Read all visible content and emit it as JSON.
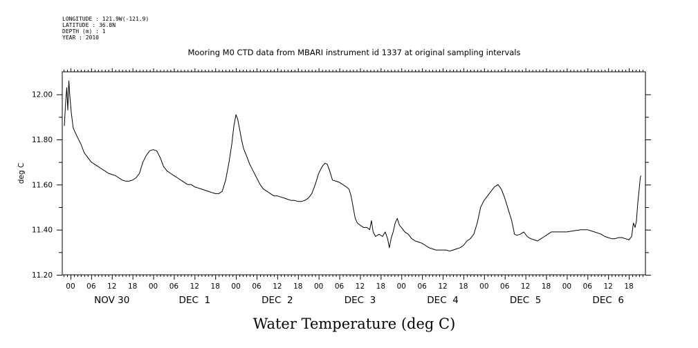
{
  "header": {
    "longitude": "LONGITUDE : 121.9W(-121.9)",
    "latitude": "LATITUDE : 36.8N",
    "depth": "DEPTH (m) : 1",
    "year": "YEAR : 2010"
  },
  "chart_data": {
    "type": "line",
    "title": "Mooring M0 CTD data from MBARI instrument id 1337 at original sampling intervals",
    "xlabel": "Water Temperature (deg C)",
    "ylabel": "deg C",
    "xunit": "hours since 2010-11-30 00:00",
    "xlim": [
      -2.4,
      166.8
    ],
    "ylim": [
      11.2,
      12.1
    ],
    "yticks": [
      11.2,
      11.4,
      11.6,
      11.8,
      12.0
    ],
    "ytick_labels": [
      "11.20",
      "11.40",
      "11.60",
      "11.80",
      "12.00"
    ],
    "xtick_labels": [
      "00",
      "06",
      "12",
      "18",
      "00",
      "06",
      "12",
      "18",
      "00",
      "06",
      "12",
      "18",
      "00",
      "06",
      "12",
      "18",
      "00",
      "06",
      "12",
      "18",
      "00",
      "06",
      "12",
      "18",
      "00",
      "06",
      "12",
      "18"
    ],
    "date_labels": [
      "NOV 30",
      "DEC  1",
      "DEC  2",
      "DEC  3",
      "DEC  4",
      "DEC  5",
      "DEC  6"
    ],
    "grid": false,
    "series": [
      {
        "values": [
          [
            -1.8,
            11.86
          ],
          [
            -1.4,
            11.97
          ],
          [
            -1.1,
            12.03
          ],
          [
            -0.8,
            11.93
          ],
          [
            -0.5,
            12.06
          ],
          [
            -0.2,
            11.99
          ],
          [
            0.2,
            11.92
          ],
          [
            0.8,
            11.85
          ],
          [
            1.4,
            11.83
          ],
          [
            2,
            11.81
          ],
          [
            3,
            11.78
          ],
          [
            4,
            11.74
          ],
          [
            5,
            11.72
          ],
          [
            6,
            11.7
          ],
          [
            7,
            11.69
          ],
          [
            8,
            11.68
          ],
          [
            9,
            11.67
          ],
          [
            10,
            11.66
          ],
          [
            11,
            11.65
          ],
          [
            12,
            11.645
          ],
          [
            13,
            11.64
          ],
          [
            14,
            11.63
          ],
          [
            15,
            11.62
          ],
          [
            16,
            11.615
          ],
          [
            17,
            11.615
          ],
          [
            18,
            11.62
          ],
          [
            19,
            11.63
          ],
          [
            20,
            11.65
          ],
          [
            21,
            11.7
          ],
          [
            22,
            11.73
          ],
          [
            23,
            11.75
          ],
          [
            24,
            11.755
          ],
          [
            25,
            11.75
          ],
          [
            26,
            11.72
          ],
          [
            27,
            11.68
          ],
          [
            28,
            11.66
          ],
          [
            29,
            11.65
          ],
          [
            30,
            11.64
          ],
          [
            31,
            11.63
          ],
          [
            32,
            11.62
          ],
          [
            33,
            11.61
          ],
          [
            34,
            11.6
          ],
          [
            35,
            11.6
          ],
          [
            36,
            11.59
          ],
          [
            37,
            11.585
          ],
          [
            38,
            11.58
          ],
          [
            39,
            11.575
          ],
          [
            40,
            11.57
          ],
          [
            41,
            11.565
          ],
          [
            42,
            11.56
          ],
          [
            43,
            11.56
          ],
          [
            44,
            11.57
          ],
          [
            45,
            11.62
          ],
          [
            46,
            11.7
          ],
          [
            46.8,
            11.78
          ],
          [
            47.4,
            11.86
          ],
          [
            48,
            11.91
          ],
          [
            48.5,
            11.89
          ],
          [
            49,
            11.85
          ],
          [
            49.6,
            11.8
          ],
          [
            50.2,
            11.76
          ],
          [
            51,
            11.73
          ],
          [
            52,
            11.69
          ],
          [
            53,
            11.66
          ],
          [
            54,
            11.63
          ],
          [
            55,
            11.6
          ],
          [
            56,
            11.58
          ],
          [
            57,
            11.57
          ],
          [
            58,
            11.56
          ],
          [
            59,
            11.55
          ],
          [
            60,
            11.55
          ],
          [
            61,
            11.545
          ],
          [
            62,
            11.54
          ],
          [
            63,
            11.535
          ],
          [
            64,
            11.53
          ],
          [
            65,
            11.53
          ],
          [
            66,
            11.525
          ],
          [
            67,
            11.525
          ],
          [
            68,
            11.53
          ],
          [
            69,
            11.54
          ],
          [
            70,
            11.56
          ],
          [
            71,
            11.6
          ],
          [
            72,
            11.65
          ],
          [
            73,
            11.68
          ],
          [
            73.8,
            11.695
          ],
          [
            74.5,
            11.69
          ],
          [
            75.2,
            11.66
          ],
          [
            76,
            11.62
          ],
          [
            77,
            11.615
          ],
          [
            78,
            11.61
          ],
          [
            79,
            11.6
          ],
          [
            80,
            11.59
          ],
          [
            80.8,
            11.58
          ],
          [
            81.4,
            11.55
          ],
          [
            82,
            11.5
          ],
          [
            82.6,
            11.45
          ],
          [
            83.2,
            11.43
          ],
          [
            84,
            11.42
          ],
          [
            85,
            11.41
          ],
          [
            86,
            11.41
          ],
          [
            86.8,
            11.4
          ],
          [
            87.3,
            11.44
          ],
          [
            87.8,
            11.39
          ],
          [
            88.5,
            11.37
          ],
          [
            89.5,
            11.38
          ],
          [
            90.5,
            11.37
          ],
          [
            91.3,
            11.39
          ],
          [
            92,
            11.36
          ],
          [
            92.5,
            11.32
          ],
          [
            93,
            11.36
          ],
          [
            93.6,
            11.39
          ],
          [
            94.2,
            11.43
          ],
          [
            94.8,
            11.45
          ],
          [
            95.4,
            11.42
          ],
          [
            96,
            11.41
          ],
          [
            97,
            11.39
          ],
          [
            98,
            11.38
          ],
          [
            99,
            11.36
          ],
          [
            100,
            11.35
          ],
          [
            101,
            11.345
          ],
          [
            102,
            11.34
          ],
          [
            103,
            11.33
          ],
          [
            104,
            11.32
          ],
          [
            105,
            11.315
          ],
          [
            106,
            11.31
          ],
          [
            107,
            11.31
          ],
          [
            108,
            11.31
          ],
          [
            109,
            11.31
          ],
          [
            110,
            11.305
          ],
          [
            111,
            11.31
          ],
          [
            112,
            11.315
          ],
          [
            113,
            11.32
          ],
          [
            114,
            11.33
          ],
          [
            115,
            11.35
          ],
          [
            116,
            11.36
          ],
          [
            117,
            11.38
          ],
          [
            118,
            11.43
          ],
          [
            119,
            11.5
          ],
          [
            120,
            11.53
          ],
          [
            121,
            11.55
          ],
          [
            122,
            11.57
          ],
          [
            123,
            11.59
          ],
          [
            124,
            11.6
          ],
          [
            125,
            11.58
          ],
          [
            126,
            11.54
          ],
          [
            127,
            11.49
          ],
          [
            128,
            11.44
          ],
          [
            128.8,
            11.38
          ],
          [
            129.5,
            11.375
          ],
          [
            130.5,
            11.38
          ],
          [
            131.5,
            11.39
          ],
          [
            132.5,
            11.37
          ],
          [
            133.5,
            11.36
          ],
          [
            134.5,
            11.355
          ],
          [
            135.5,
            11.35
          ],
          [
            136.5,
            11.36
          ],
          [
            137.5,
            11.37
          ],
          [
            138.5,
            11.38
          ],
          [
            139.5,
            11.39
          ],
          [
            140.5,
            11.39
          ],
          [
            142,
            11.39
          ],
          [
            144,
            11.39
          ],
          [
            146,
            11.395
          ],
          [
            148,
            11.4
          ],
          [
            150,
            11.4
          ],
          [
            152,
            11.39
          ],
          [
            154,
            11.38
          ],
          [
            155,
            11.37
          ],
          [
            156,
            11.365
          ],
          [
            157,
            11.36
          ],
          [
            158,
            11.36
          ],
          [
            159,
            11.365
          ],
          [
            160,
            11.365
          ],
          [
            161,
            11.36
          ],
          [
            162,
            11.355
          ],
          [
            162.8,
            11.37
          ],
          [
            163.3,
            11.43
          ],
          [
            163.8,
            11.41
          ],
          [
            164.2,
            11.44
          ],
          [
            164.6,
            11.52
          ],
          [
            165,
            11.58
          ],
          [
            165.3,
            11.63
          ],
          [
            165.5,
            11.64
          ]
        ]
      }
    ]
  }
}
